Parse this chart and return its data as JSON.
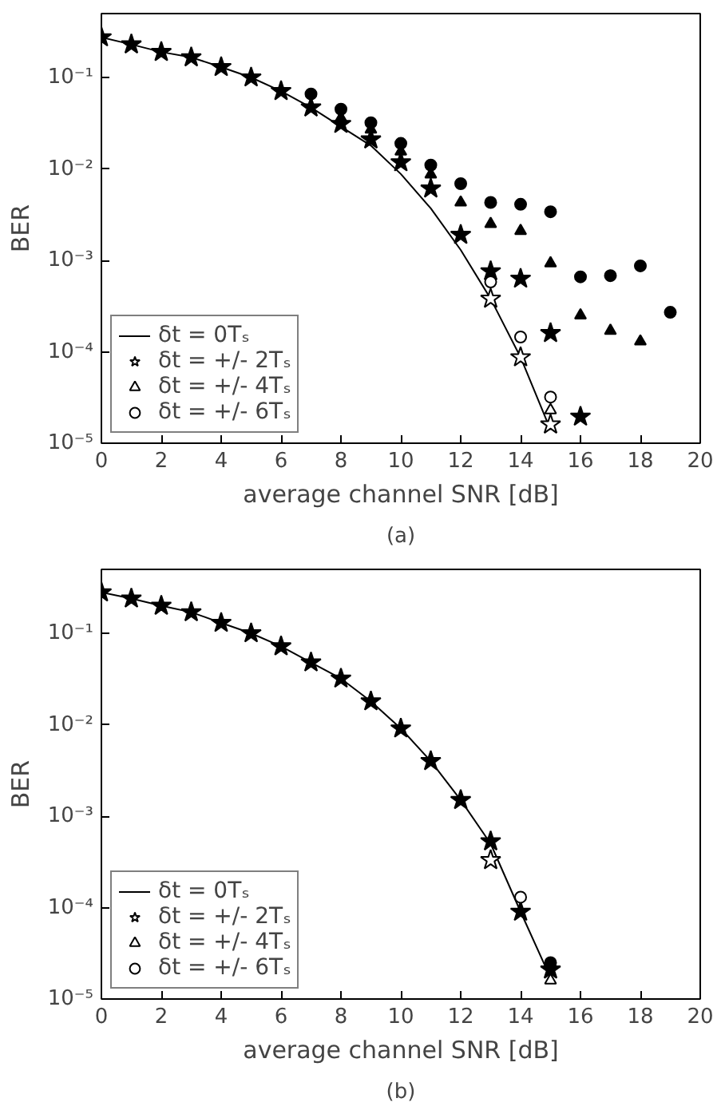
{
  "chart_data": [
    {
      "type": "scatter",
      "xlabel": "average channel SNR [dB]",
      "ylabel": "BER",
      "annotations": [
        "(a)"
      ],
      "log": "y",
      "xlim": [
        0,
        20
      ],
      "ylim": [
        1e-05,
        0.5
      ],
      "xticks": [
        0,
        2,
        4,
        6,
        8,
        10,
        12,
        14,
        16,
        18,
        20
      ],
      "yticks": [
        {
          "value": 1e-05,
          "label": "10⁻⁵"
        },
        {
          "value": 0.0001,
          "label": "10⁻⁴"
        },
        {
          "value": 0.001,
          "label": "10⁻³"
        },
        {
          "value": 0.01,
          "label": "10⁻²"
        },
        {
          "value": 0.1,
          "label": "10⁻¹"
        }
      ],
      "grid": false,
      "legend": "bottom left",
      "series": [
        {
          "type": "line",
          "name": "δt = 0Tₛ",
          "color": "#000000",
          "marker": "none",
          "x": [
            0,
            1,
            2,
            3,
            4,
            5,
            6,
            7,
            8,
            9,
            10,
            11,
            12,
            13,
            14,
            15
          ],
          "values": [
            0.275,
            0.23,
            0.19,
            0.166,
            0.13,
            0.1,
            0.071,
            0.047,
            0.029,
            0.018,
            0.0088,
            0.0037,
            0.0013,
            0.00038,
            8.7e-05,
            1.4e-05
          ]
        },
        {
          "name": "δt = +/- 2Tₛ",
          "color": "#000000",
          "marker": "star",
          "x": [
            13,
            14,
            15
          ],
          "values": [
            0.00038,
            8.7e-05,
            1.6e-05
          ]
        },
        {
          "color": "#000000",
          "marker": "star",
          "x": [
            0,
            1,
            2,
            3,
            4,
            5,
            6,
            7,
            8,
            9,
            10,
            11,
            12,
            13,
            14,
            15,
            16
          ],
          "values": [
            0.275,
            0.23,
            0.19,
            0.166,
            0.13,
            0.1,
            0.071,
            0.047,
            0.031,
            0.021,
            0.0118,
            0.0061,
            0.0019,
            0.00076,
            0.00063,
            0.00016,
            1.95e-05
          ]
        },
        {
          "name": "δt = +/- 4Tₛ",
          "color": "#000000",
          "marker": "triangle",
          "x": [
            15
          ],
          "values": [
            2.3e-05
          ]
        },
        {
          "color": "#000000",
          "marker": "triangle",
          "x": [
            8,
            9,
            10,
            11,
            12,
            13,
            14,
            15,
            16,
            17,
            18
          ],
          "values": [
            0.036,
            0.027,
            0.0155,
            0.0087,
            0.0043,
            0.0025,
            0.0021,
            0.00093,
            0.00025,
            0.00017,
            0.00013
          ]
        },
        {
          "name": "δt = +/- 6Tₛ",
          "color": "#000000",
          "marker": "circle",
          "x": [
            13,
            14,
            15
          ],
          "values": [
            0.00058,
            0.000145,
            3.2e-05
          ]
        },
        {
          "color": "#000000",
          "marker": "circle",
          "x": [
            7,
            8,
            9,
            10,
            11,
            12,
            13,
            14,
            15,
            16,
            17,
            18,
            19
          ],
          "values": [
            0.066,
            0.045,
            0.032,
            0.019,
            0.011,
            0.0069,
            0.0043,
            0.0041,
            0.0034,
            0.00066,
            0.00068,
            0.00087,
            0.00027
          ]
        }
      ]
    },
    {
      "type": "scatter",
      "xlabel": "average channel SNR [dB]",
      "ylabel": "BER",
      "annotations": [
        "(b)"
      ],
      "log": "y",
      "xlim": [
        0,
        20
      ],
      "ylim": [
        1e-05,
        0.5
      ],
      "xticks": [
        0,
        2,
        4,
        6,
        8,
        10,
        12,
        14,
        16,
        18,
        20
      ],
      "yticks": [
        {
          "value": 1e-05,
          "label": "10⁻⁵"
        },
        {
          "value": 0.0001,
          "label": "10⁻⁴"
        },
        {
          "value": 0.001,
          "label": "10⁻³"
        },
        {
          "value": 0.01,
          "label": "10⁻²"
        },
        {
          "value": 0.1,
          "label": "10⁻¹"
        }
      ],
      "grid": false,
      "legend": "bottom left",
      "series": [
        {
          "type": "line",
          "name": "δt = 0Tₛ",
          "color": "#000000",
          "marker": "none",
          "x": [
            0,
            1,
            2,
            3,
            4,
            5,
            6,
            7,
            8,
            9,
            10,
            11,
            12,
            13,
            14,
            15
          ],
          "values": [
            0.28,
            0.24,
            0.2,
            0.17,
            0.13,
            0.1,
            0.072,
            0.048,
            0.032,
            0.018,
            0.0091,
            0.004,
            0.0015,
            0.0005,
            9e-05,
            1.7e-05
          ]
        },
        {
          "name": "δt = +/- 2Tₛ",
          "color": "#000000",
          "marker": "star",
          "x": [
            13
          ],
          "values": [
            0.00033
          ]
        },
        {
          "color": "#000000",
          "marker": "star",
          "x": [
            0,
            1,
            2,
            3,
            4,
            5,
            6,
            7,
            8,
            9,
            10,
            11,
            12,
            13,
            14,
            15
          ],
          "values": [
            0.28,
            0.24,
            0.2,
            0.17,
            0.13,
            0.1,
            0.072,
            0.048,
            0.032,
            0.018,
            0.0091,
            0.004,
            0.0015,
            0.00053,
            9e-05,
            2.1e-05
          ]
        },
        {
          "name": "δt = +/- 4Tₛ",
          "color": "#000000",
          "marker": "triangle",
          "x": [
            15
          ],
          "values": [
            1.6e-05
          ]
        },
        {
          "name": "δt = +/- 6Tₛ",
          "color": "#000000",
          "marker": "circle",
          "x": [
            14
          ],
          "values": [
            0.00013
          ]
        },
        {
          "color": "#000000",
          "marker": "circle",
          "x": [
            15
          ],
          "values": [
            2.5e-05
          ]
        }
      ]
    }
  ]
}
